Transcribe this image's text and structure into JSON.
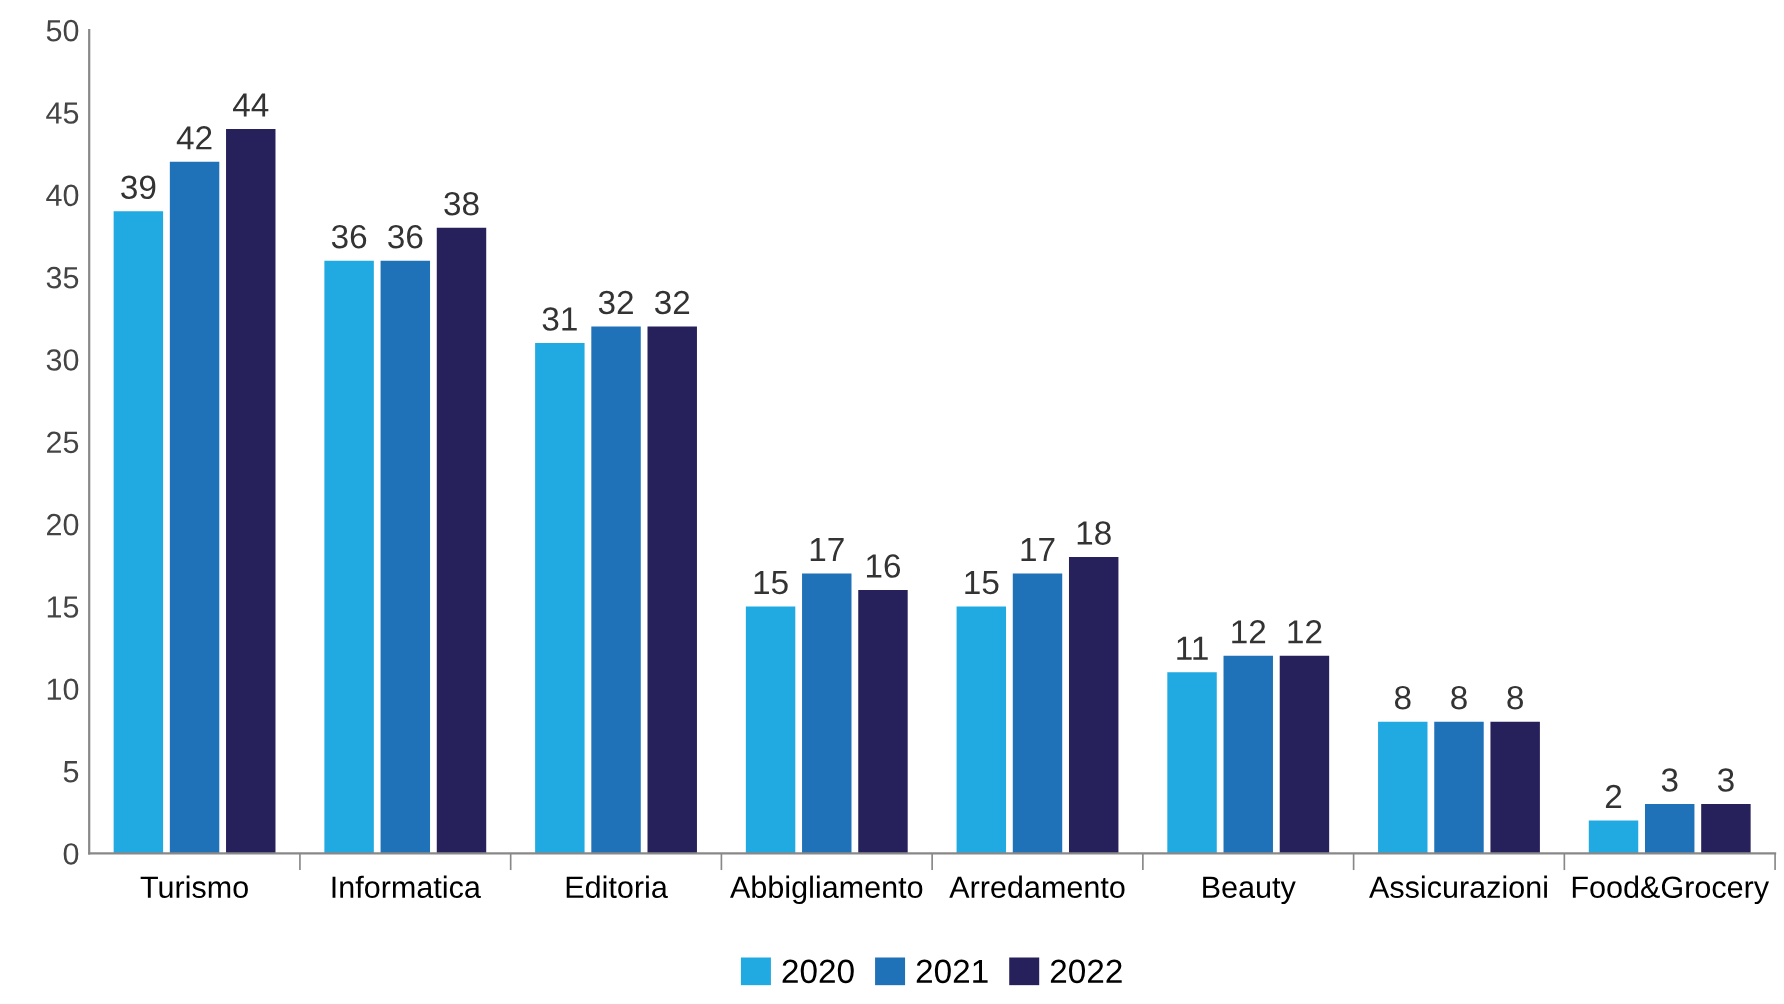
{
  "chart_data": {
    "type": "bar",
    "categories": [
      "Turismo",
      "Informatica",
      "Editoria",
      "Abbigliamento",
      "Arredamento",
      "Beauty",
      "Assicurazioni",
      "Food&Grocery"
    ],
    "series": [
      {
        "name": "2020",
        "color": "#21a9e1",
        "values": [
          39,
          36,
          31,
          15,
          15,
          11,
          8,
          2
        ]
      },
      {
        "name": "2021",
        "color": "#1f71b8",
        "values": [
          42,
          36,
          32,
          17,
          17,
          12,
          8,
          3
        ]
      },
      {
        "name": "2022",
        "color": "#27215b",
        "values": [
          44,
          38,
          32,
          16,
          18,
          12,
          8,
          3
        ]
      }
    ],
    "ylim": [
      0,
      50
    ],
    "yticks": [
      0,
      5,
      10,
      15,
      20,
      25,
      30,
      35,
      40,
      45,
      50
    ],
    "grid": false,
    "legend": "bottom",
    "data_labels": true
  }
}
